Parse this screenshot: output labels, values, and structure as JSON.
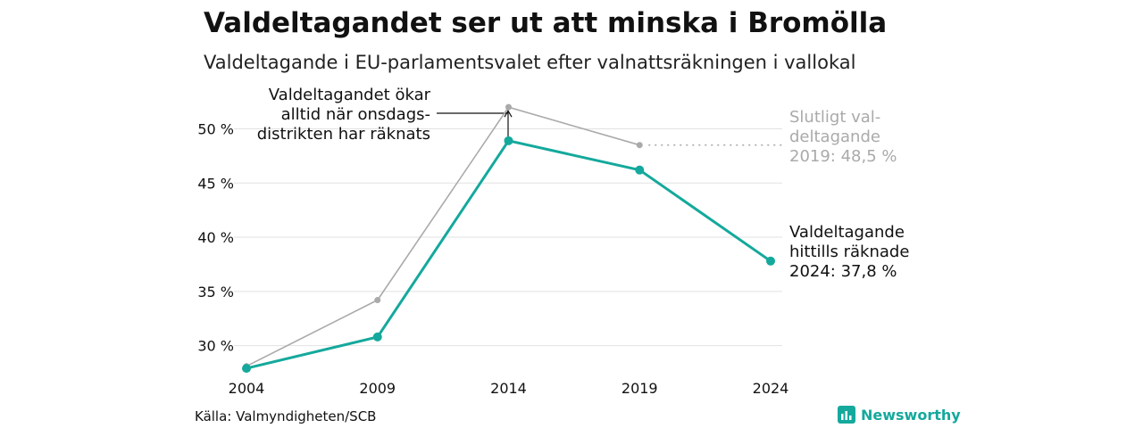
{
  "header": {
    "title": "Valdeltagandet ser ut att minska i Bromölla",
    "subtitle": "Valdeltagande i EU-parlamentsvalet efter valnattsräkningen i vallokal"
  },
  "footer": {
    "source": "Källa: Valmyndigheten/SCB",
    "brand": "Newsworthy"
  },
  "colors": {
    "primary": "#14a99c",
    "secondary": "#aaaaaa",
    "grid": "#e2e2e2",
    "text": "#111111"
  },
  "chart_data": {
    "type": "line",
    "x": [
      "2004",
      "2009",
      "2014",
      "2019",
      "2024"
    ],
    "series": [
      {
        "key": "final",
        "values": [
          28.1,
          34.2,
          52.0,
          48.5,
          null
        ]
      },
      {
        "key": "election_night",
        "values": [
          27.9,
          30.8,
          48.9,
          46.2,
          37.8
        ]
      }
    ],
    "yticks": [
      30,
      35,
      40,
      45,
      50
    ],
    "ytick_labels": [
      "30 %",
      "35 %",
      "40 %",
      "45 %",
      "50 %"
    ],
    "ylim": [
      27.5,
      53
    ],
    "grid": true,
    "annotations": {
      "wednesday": [
        "Valdeltagandet ökar",
        "alltid när onsdags-",
        "distrikten har räknats"
      ],
      "final_2019": [
        "Slutligt val-",
        "deltagande",
        "2019: 48,5 %"
      ],
      "current_2024": [
        "Valdeltagande",
        "hittills räknade",
        "2024: 37,8 %"
      ]
    }
  }
}
